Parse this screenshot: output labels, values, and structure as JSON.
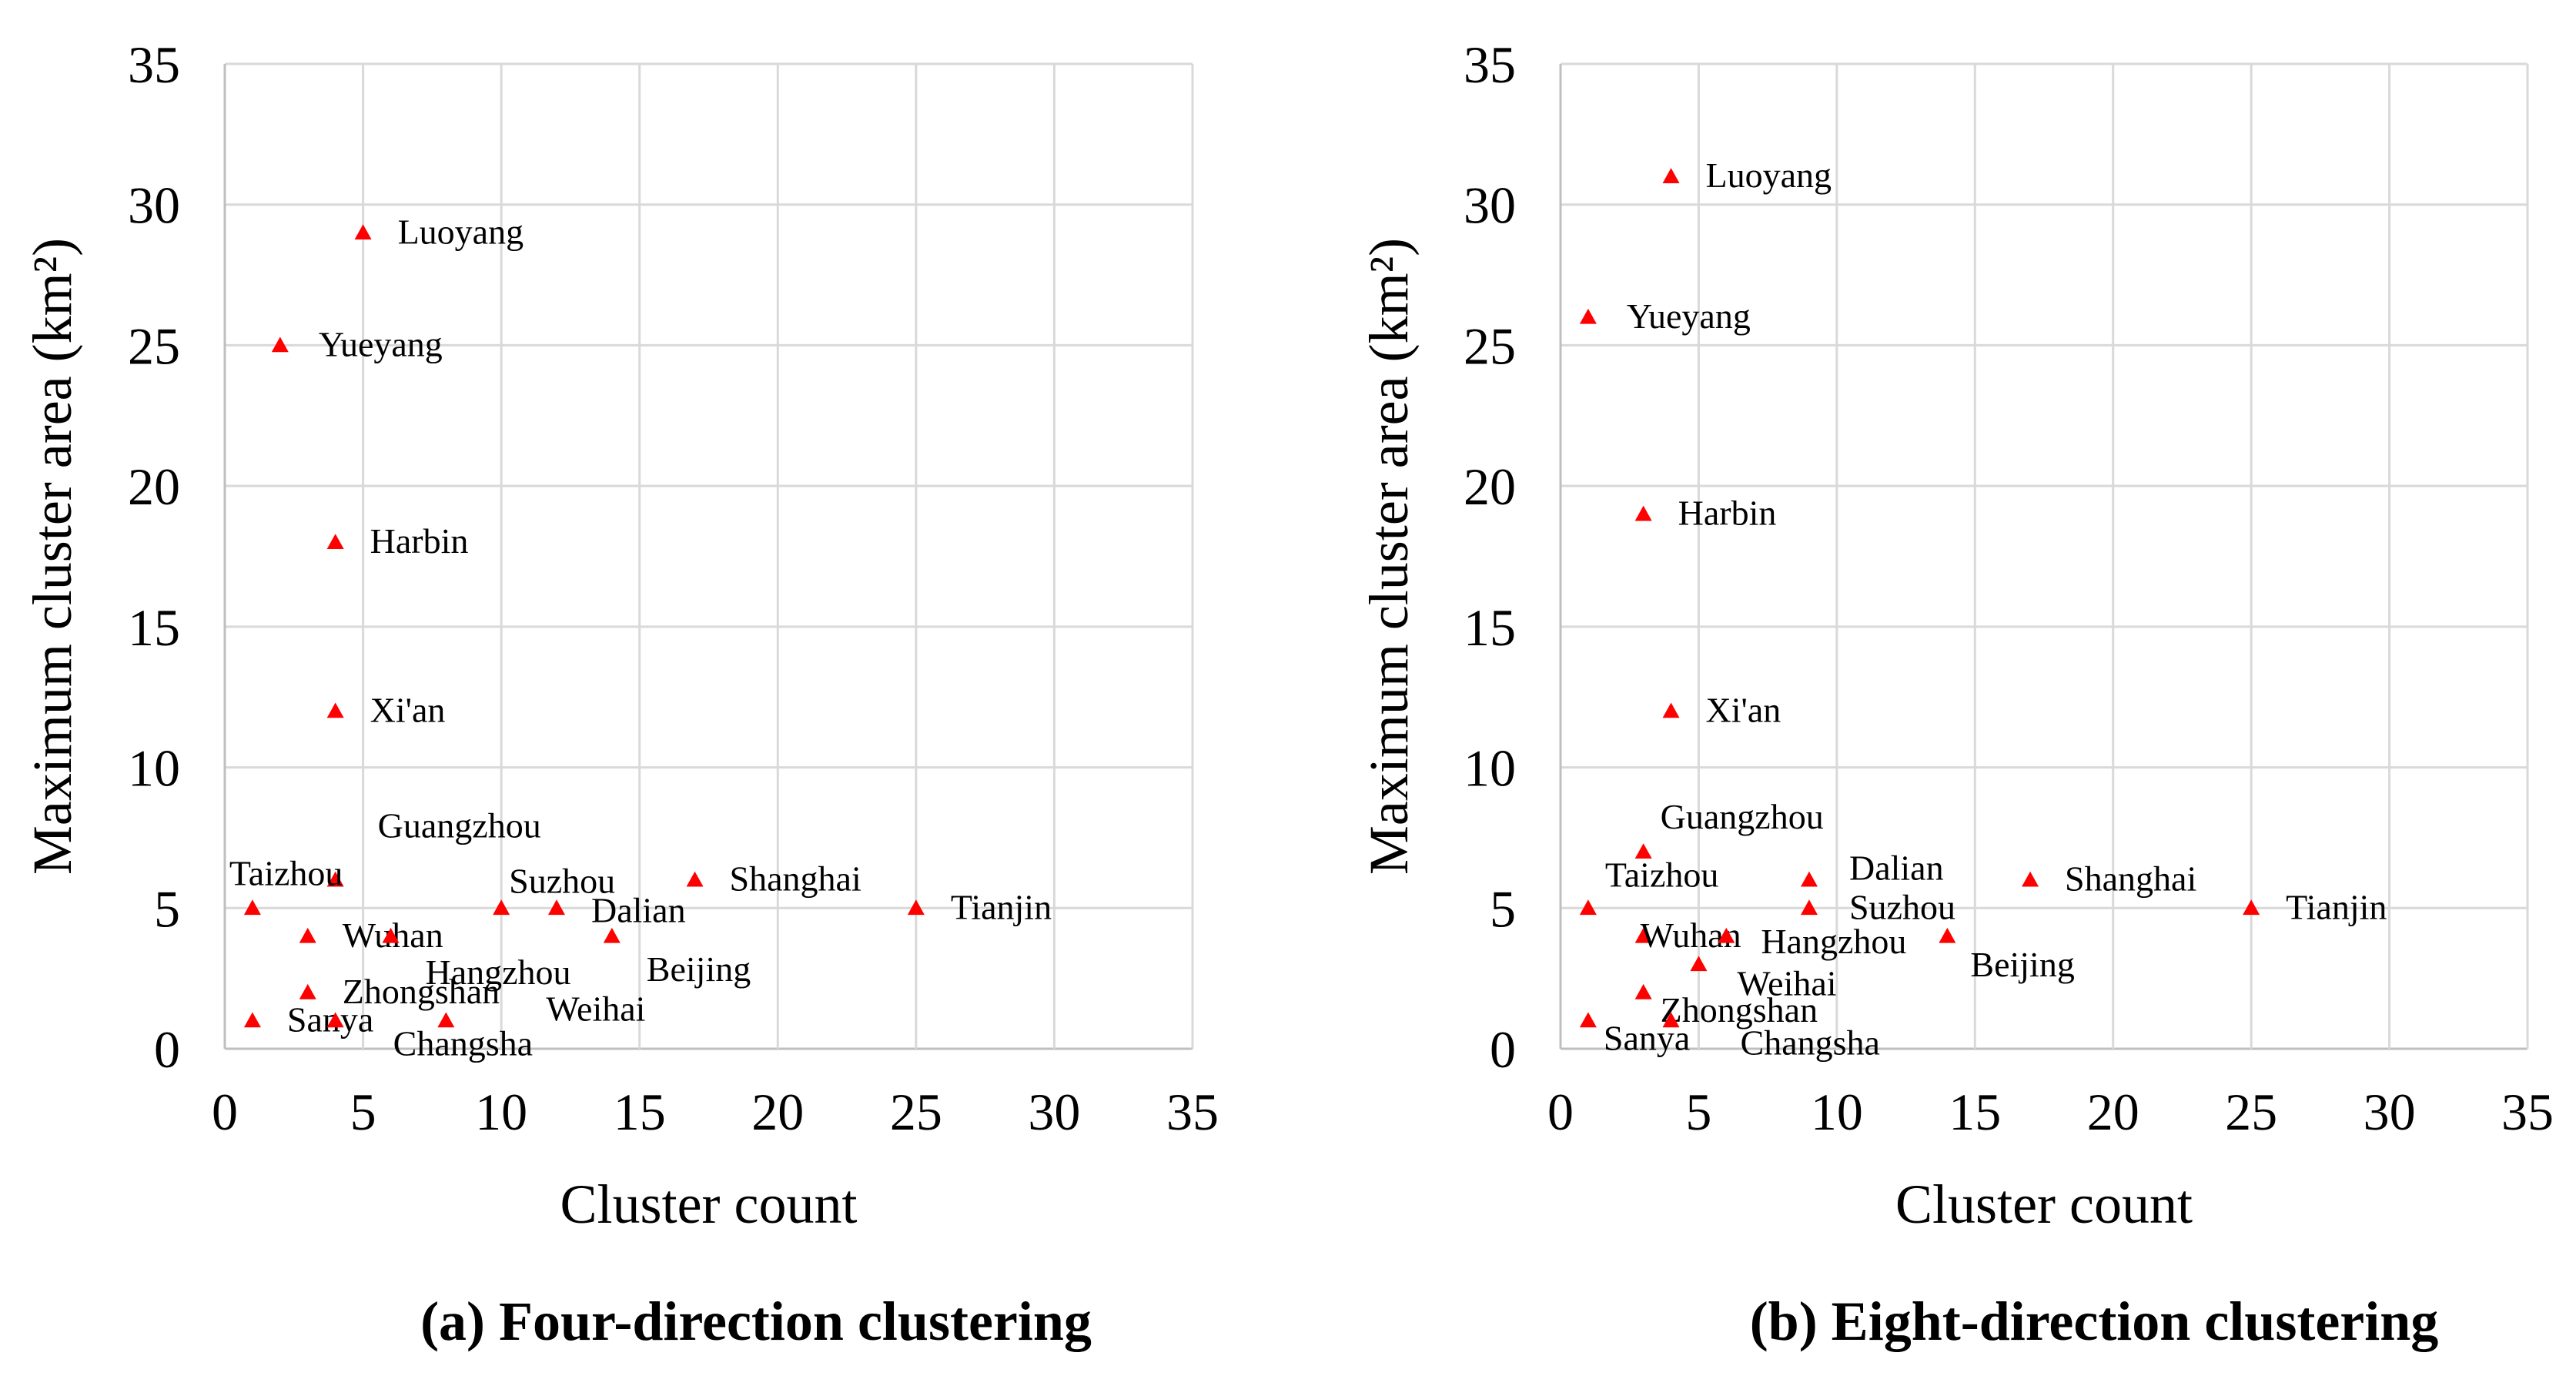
{
  "chart_data": [
    {
      "type": "scatter",
      "panel": "a",
      "caption": "(a) Four-direction clustering",
      "xlabel": "Cluster count",
      "ylabel": "Maximum cluster area (km²)",
      "xlim": [
        0,
        35
      ],
      "ylim": [
        0,
        35
      ],
      "xticks": [
        "0",
        "5",
        "10",
        "15",
        "20",
        "25",
        "30",
        "35"
      ],
      "yticks": [
        "0",
        "5",
        "10",
        "15",
        "20",
        "25",
        "30",
        "35"
      ],
      "grid": true,
      "marker_color": "#ff0000",
      "points": [
        {
          "name": "Luoyang",
          "x": 5,
          "y": 29
        },
        {
          "name": "Yueyang",
          "x": 2,
          "y": 25
        },
        {
          "name": "Harbin",
          "x": 4,
          "y": 18
        },
        {
          "name": "Xi'an",
          "x": 4,
          "y": 12
        },
        {
          "name": "Guangzhou",
          "x": 4,
          "y": 6
        },
        {
          "name": "Taizhou",
          "x": 1,
          "y": 5
        },
        {
          "name": "Suzhou",
          "x": 10,
          "y": 5
        },
        {
          "name": "Dalian",
          "x": 12,
          "y": 5
        },
        {
          "name": "Shanghai",
          "x": 17,
          "y": 6
        },
        {
          "name": "Tianjin",
          "x": 25,
          "y": 5
        },
        {
          "name": "Wuhan",
          "x": 3,
          "y": 4
        },
        {
          "name": "Hangzhou",
          "x": 6,
          "y": 4
        },
        {
          "name": "Beijing",
          "x": 14,
          "y": 4
        },
        {
          "name": "Zhongshan",
          "x": 3,
          "y": 2
        },
        {
          "name": "Sanya",
          "x": 1,
          "y": 1
        },
        {
          "name": "Changsha",
          "x": 4,
          "y": 1
        },
        {
          "name": "Weihai",
          "x": 8,
          "y": 1
        }
      ]
    },
    {
      "type": "scatter",
      "panel": "b",
      "caption": "(b) Eight-direction clustering",
      "xlabel": "Cluster count",
      "ylabel": "Maximum cluster area (km²)",
      "xlim": [
        0,
        35
      ],
      "ylim": [
        0,
        35
      ],
      "xticks": [
        "0",
        "5",
        "10",
        "15",
        "20",
        "25",
        "30",
        "35"
      ],
      "yticks": [
        "0",
        "5",
        "10",
        "15",
        "20",
        "25",
        "30",
        "35"
      ],
      "grid": true,
      "marker_color": "#ff0000",
      "points": [
        {
          "name": "Luoyang",
          "x": 4,
          "y": 31
        },
        {
          "name": "Yueyang",
          "x": 1,
          "y": 26
        },
        {
          "name": "Harbin",
          "x": 3,
          "y": 19
        },
        {
          "name": "Xi'an",
          "x": 4,
          "y": 12
        },
        {
          "name": "Guangzhou",
          "x": 3,
          "y": 7
        },
        {
          "name": "Dalian",
          "x": 9,
          "y": 6
        },
        {
          "name": "Taizhou",
          "x": 1,
          "y": 5
        },
        {
          "name": "Suzhou",
          "x": 9,
          "y": 5
        },
        {
          "name": "Shanghai",
          "x": 17,
          "y": 6
        },
        {
          "name": "Tianjin",
          "x": 25,
          "y": 5
        },
        {
          "name": "Wuhan",
          "x": 3,
          "y": 4
        },
        {
          "name": "Hangzhou",
          "x": 6,
          "y": 4
        },
        {
          "name": "Beijing",
          "x": 14,
          "y": 4
        },
        {
          "name": "Weihai",
          "x": 5,
          "y": 3
        },
        {
          "name": "Zhongshan",
          "x": 3,
          "y": 2
        },
        {
          "name": "Sanya",
          "x": 1,
          "y": 1
        },
        {
          "name": "Changsha",
          "x": 4,
          "y": 1
        }
      ]
    }
  ]
}
